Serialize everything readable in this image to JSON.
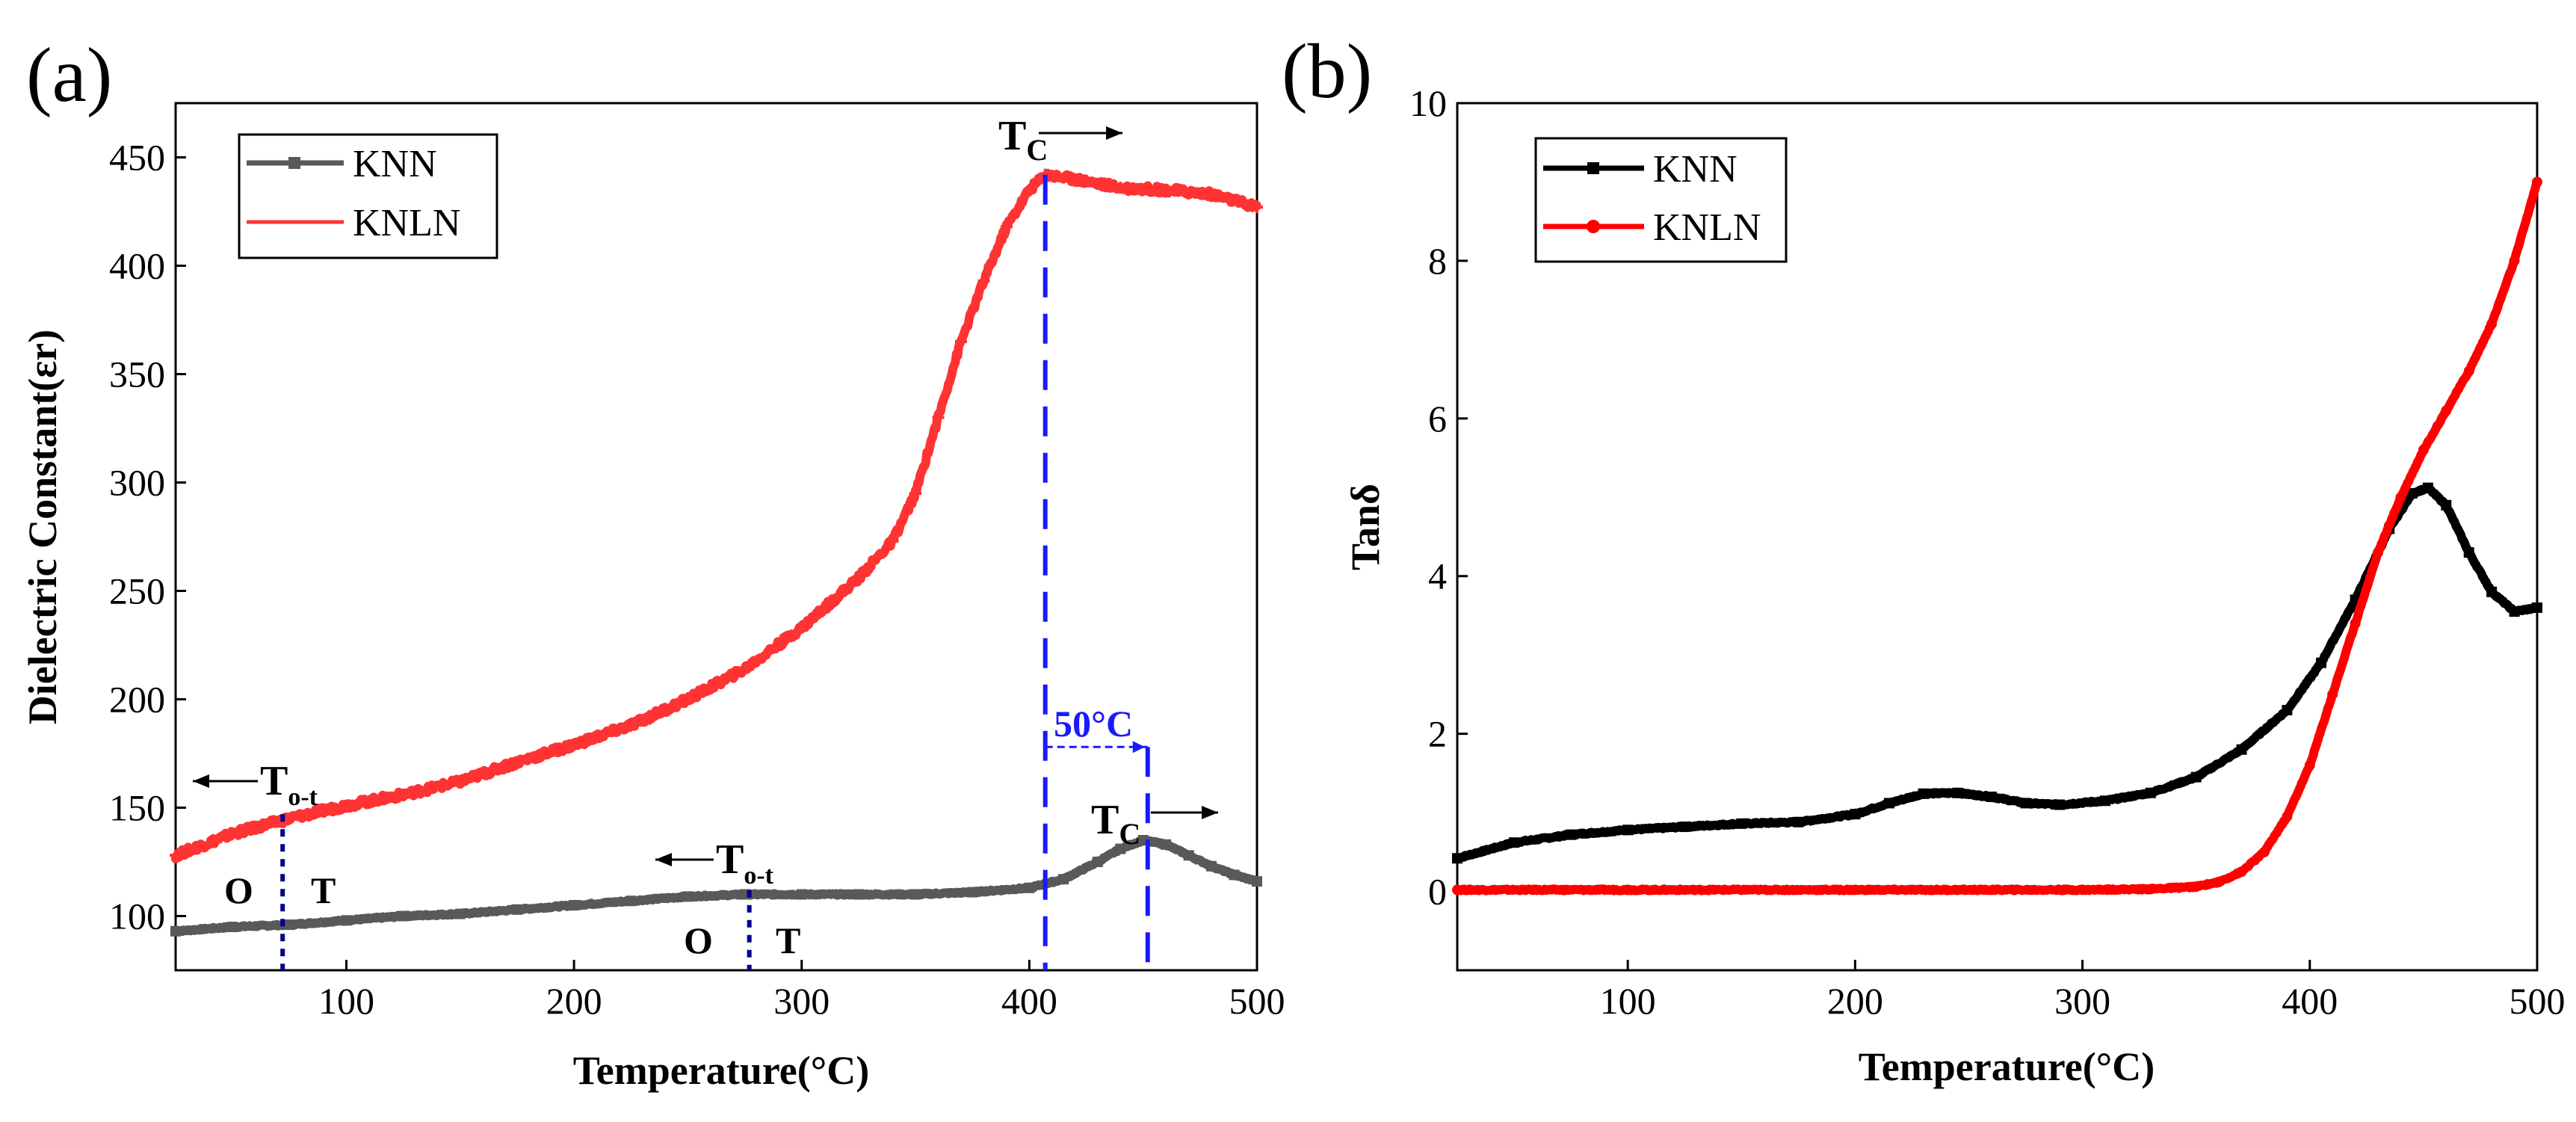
{
  "chart_data": [
    {
      "panel_label": "(a)",
      "type": "line",
      "xlabel": "Temperature(°C)",
      "ylabel": "Dielectric Constant(εr)",
      "xlim": [
        25,
        500
      ],
      "ylim": [
        75,
        475
      ],
      "xticks": [
        100,
        200,
        300,
        400,
        500
      ],
      "yticks": [
        100,
        150,
        200,
        250,
        300,
        350,
        400,
        450
      ],
      "legend_position": "top-left",
      "series": [
        {
          "name": "KNN",
          "color": "#595959",
          "marker": "square",
          "x": [
            25,
            50,
            75,
            100,
            125,
            150,
            175,
            200,
            225,
            250,
            275,
            300,
            325,
            350,
            375,
            400,
            415,
            430,
            440,
            450,
            460,
            470,
            480,
            490,
            500
          ],
          "y": [
            93,
            95,
            96,
            98,
            100,
            101,
            103,
            105,
            107,
            109,
            110,
            110,
            110,
            110,
            111,
            113,
            117,
            125,
            131,
            135,
            133,
            128,
            123,
            119,
            116
          ]
        },
        {
          "name": "KNLN",
          "color": "#ff3333",
          "marker": "plus",
          "x": [
            25,
            50,
            75,
            100,
            125,
            150,
            175,
            200,
            225,
            250,
            275,
            300,
            325,
            340,
            350,
            360,
            370,
            380,
            390,
            400,
            407,
            420,
            440,
            460,
            480,
            500
          ],
          "y": [
            128,
            138,
            145,
            151,
            156,
            162,
            171,
            179,
            188,
            200,
            214,
            233,
            256,
            273,
            295,
            330,
            365,
            393,
            418,
            435,
            442,
            440,
            436,
            435,
            433,
            427
          ]
        }
      ],
      "annotations": {
        "tc_label": "T",
        "tc_sub": "C",
        "tot_label": "T",
        "tot_sub": "o-t",
        "phase_o": "O",
        "phase_t": "T",
        "shift_label": "50°C",
        "knln_tc": 407,
        "knn_tc": 452,
        "knln_tot": 72,
        "knn_tot": 277
      }
    },
    {
      "panel_label": "(b)",
      "type": "line",
      "xlabel": "Temperature(°C)",
      "ylabel": "Tanδ",
      "xlim": [
        25,
        500
      ],
      "ylim": [
        -1,
        10
      ],
      "xticks": [
        100,
        200,
        300,
        400,
        500
      ],
      "yticks": [
        0,
        2,
        4,
        6,
        8,
        10
      ],
      "legend_position": "top-left",
      "series": [
        {
          "name": "KNN",
          "color": "#000000",
          "marker": "square",
          "x": [
            25,
            50,
            75,
            100,
            125,
            150,
            175,
            200,
            215,
            230,
            245,
            260,
            275,
            290,
            310,
            330,
            350,
            370,
            390,
            405,
            420,
            435,
            445,
            452,
            460,
            470,
            480,
            490,
            500
          ],
          "y": [
            0.42,
            0.62,
            0.72,
            0.78,
            0.82,
            0.86,
            0.88,
            0.98,
            1.12,
            1.24,
            1.25,
            1.2,
            1.12,
            1.1,
            1.15,
            1.25,
            1.45,
            1.8,
            2.3,
            2.9,
            3.7,
            4.6,
            5.05,
            5.12,
            4.9,
            4.3,
            3.8,
            3.55,
            3.6
          ]
        },
        {
          "name": "KNLN",
          "color": "#ff0000",
          "marker": "circle",
          "x": [
            25,
            100,
            200,
            300,
            330,
            350,
            360,
            370,
            380,
            390,
            400,
            410,
            420,
            430,
            440,
            450,
            460,
            470,
            480,
            490,
            500
          ],
          "y": [
            0.02,
            0.02,
            0.02,
            0.02,
            0.03,
            0.06,
            0.12,
            0.25,
            0.5,
            0.95,
            1.6,
            2.5,
            3.4,
            4.3,
            5.0,
            5.6,
            6.1,
            6.6,
            7.2,
            8.0,
            9.0
          ]
        }
      ]
    }
  ]
}
